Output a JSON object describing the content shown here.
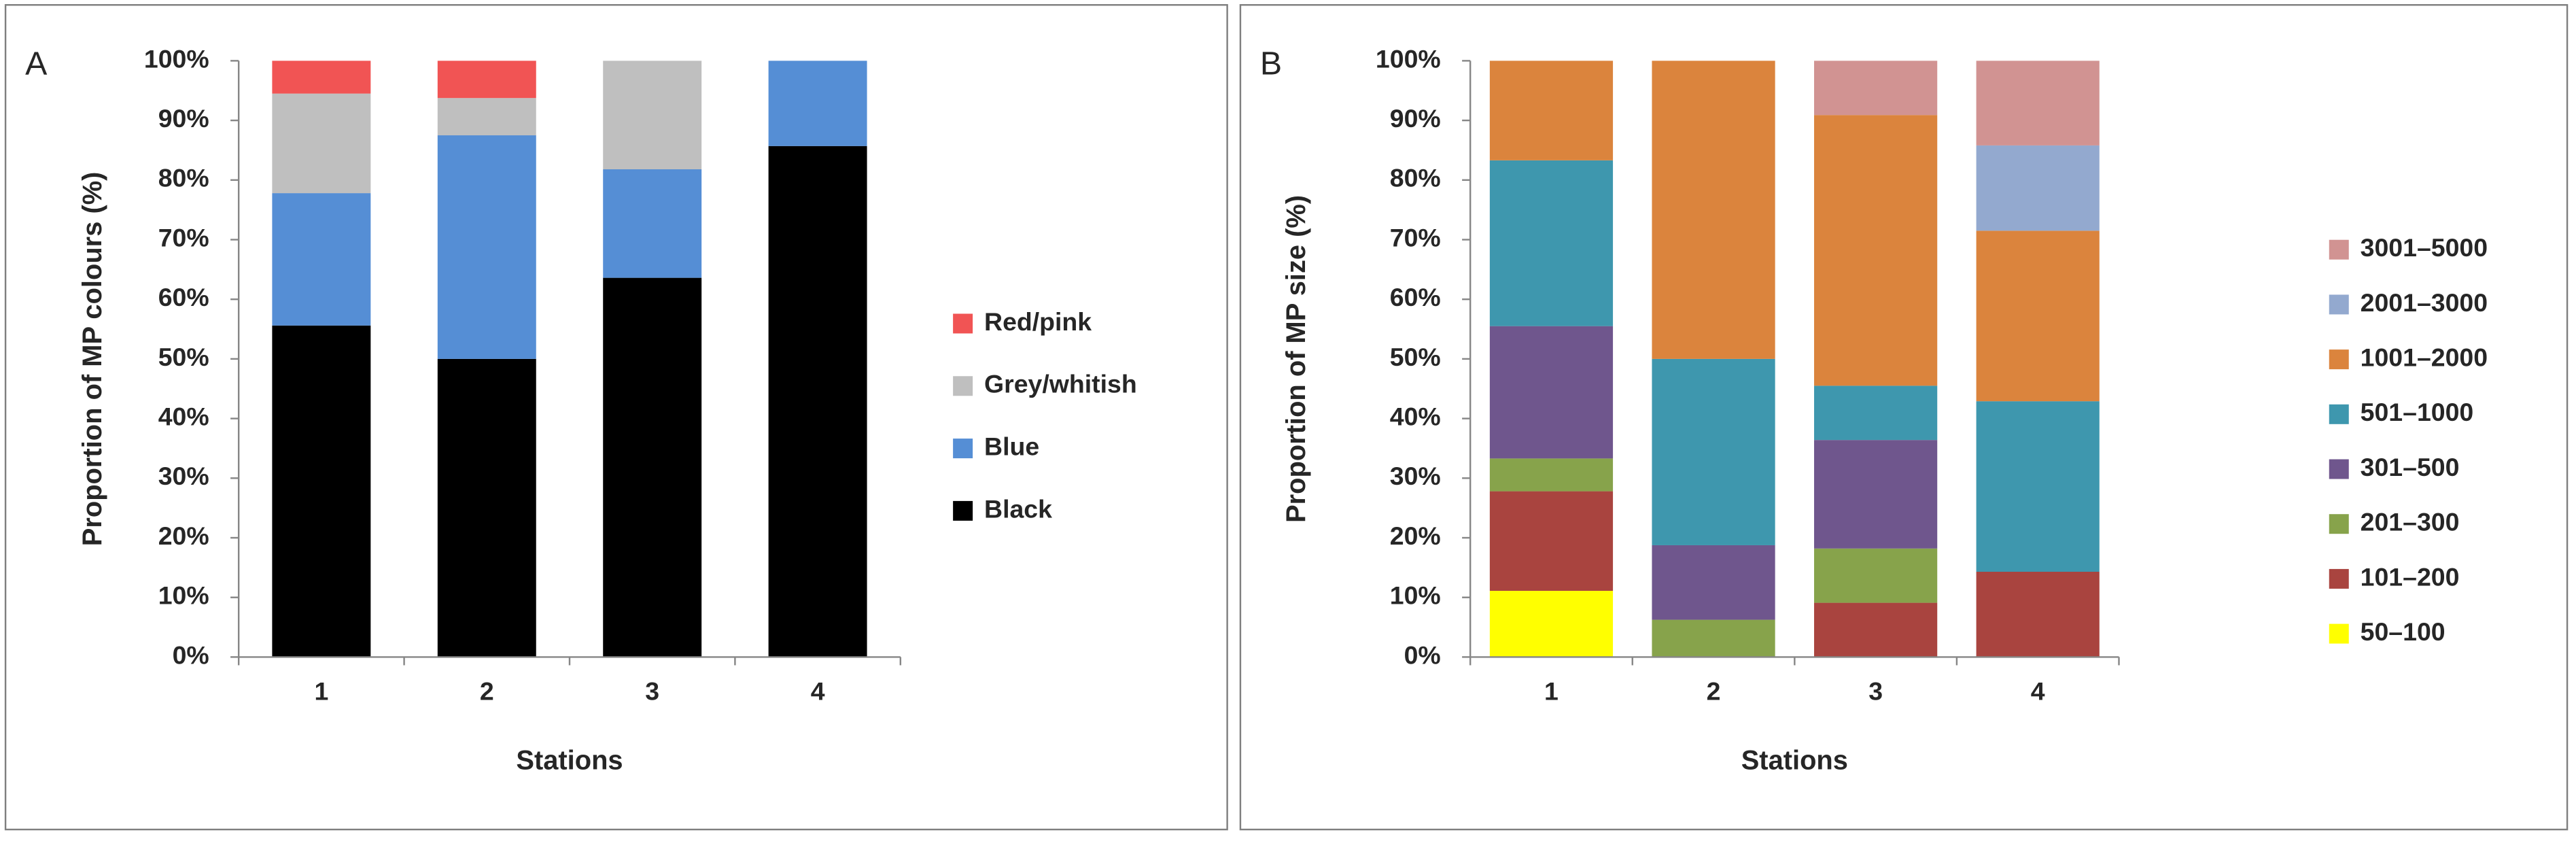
{
  "chart_data": [
    {
      "type": "bar",
      "stacked": true,
      "panel_label": "A",
      "x_label": "Stations",
      "y_label": "Proportion of MP colours (%)",
      "categories": [
        "1",
        "2",
        "3",
        "4"
      ],
      "series": [
        {
          "name": "Black",
          "color": "#000000",
          "values": [
            55.6,
            50,
            63.6,
            85.7
          ]
        },
        {
          "name": "Blue",
          "color": "#558ed5",
          "values": [
            22.2,
            37.5,
            18.2,
            14.3
          ]
        },
        {
          "name": "Grey/whitish",
          "color": "#bfbfbf",
          "values": [
            16.7,
            6.25,
            18.2,
            0
          ]
        },
        {
          "name": "Red/pink",
          "color": "#f15454",
          "values": [
            5.5,
            6.25,
            0,
            0
          ]
        }
      ],
      "ylim": [
        0,
        100
      ],
      "yticks": [
        {
          "value": 0,
          "label": "0%"
        },
        {
          "value": 10,
          "label": "10%"
        },
        {
          "value": 20,
          "label": "20%"
        },
        {
          "value": 30,
          "label": "30%"
        },
        {
          "value": 40,
          "label": "40%"
        },
        {
          "value": 50,
          "label": "50%"
        },
        {
          "value": 60,
          "label": "60%"
        },
        {
          "value": 70,
          "label": "70%"
        },
        {
          "value": 80,
          "label": "80%"
        },
        {
          "value": 90,
          "label": "90%"
        },
        {
          "value": 100,
          "label": "100%"
        }
      ],
      "grid": false,
      "legend": "right"
    },
    {
      "type": "bar",
      "stacked": true,
      "panel_label": "B",
      "x_label": "Stations",
      "y_label": "Proportion of MP size (%)",
      "categories": [
        "1",
        "2",
        "3",
        "4"
      ],
      "series": [
        {
          "name": "50–100",
          "color": "#ffff00",
          "values": [
            11.1,
            0,
            0,
            0
          ]
        },
        {
          "name": "101–200",
          "color": "#a9443f",
          "values": [
            16.7,
            0,
            9.1,
            14.3
          ]
        },
        {
          "name": "201–300",
          "color": "#87a34b",
          "values": [
            5.5,
            6.25,
            9.1,
            0
          ]
        },
        {
          "name": "301–500",
          "color": "#6f568d",
          "values": [
            22.2,
            12.5,
            18.2,
            0
          ]
        },
        {
          "name": "501–1000",
          "color": "#3e97ae",
          "values": [
            27.8,
            31.25,
            9.1,
            28.6
          ]
        },
        {
          "name": "1001–2000",
          "color": "#db843d",
          "values": [
            16.7,
            50,
            45.4,
            28.6
          ]
        },
        {
          "name": "2001–3000",
          "color": "#93a9cf",
          "values": [
            0,
            0,
            0,
            14.3
          ]
        },
        {
          "name": "3001–5000",
          "color": "#d19392",
          "values": [
            0,
            0,
            9.1,
            14.2
          ]
        }
      ],
      "ylim": [
        0,
        100
      ],
      "yticks": [
        {
          "value": 0,
          "label": "0%"
        },
        {
          "value": 10,
          "label": "10%"
        },
        {
          "value": 20,
          "label": "20%"
        },
        {
          "value": 30,
          "label": "30%"
        },
        {
          "value": 40,
          "label": "40%"
        },
        {
          "value": 50,
          "label": "50%"
        },
        {
          "value": 60,
          "label": "60%"
        },
        {
          "value": 70,
          "label": "70%"
        },
        {
          "value": 80,
          "label": "80%"
        },
        {
          "value": 90,
          "label": "90%"
        },
        {
          "value": 100,
          "label": "100%"
        }
      ],
      "grid": false,
      "legend": "right"
    }
  ]
}
